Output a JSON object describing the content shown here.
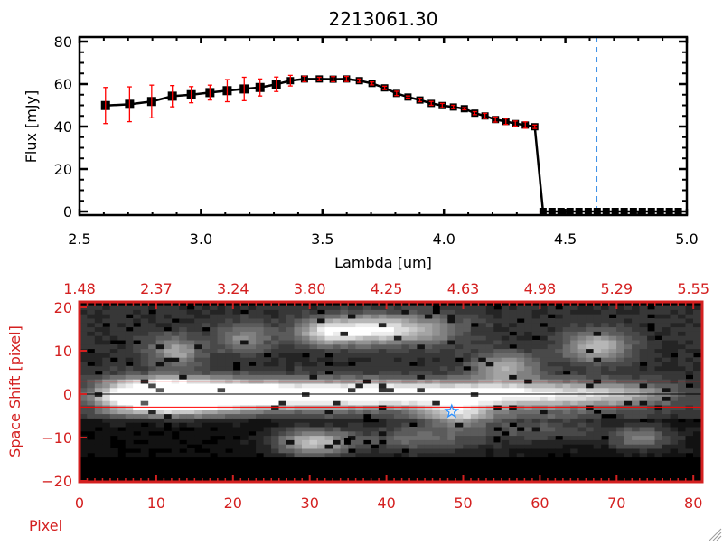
{
  "chart_data": [
    {
      "type": "line",
      "title": "2213061.30",
      "xlabel": "Lambda [um]",
      "ylabel": "Flux [mJy]",
      "xlim": [
        2.5,
        5.0
      ],
      "ylim": [
        0,
        80
      ],
      "xticks": [
        "2.5",
        "3.0",
        "3.5",
        "4.0",
        "4.5",
        "5.0"
      ],
      "yticks": [
        "0",
        "20",
        "40",
        "60",
        "80"
      ],
      "grid": false,
      "colors": {
        "line": "#000000",
        "errorbar": "#ff0000",
        "zero_line": "#ff0000",
        "marker_line": "#3a8ee6"
      },
      "marker_line_x": 4.63,
      "series": [
        {
          "x": [
            2.607,
            2.706,
            2.797,
            2.882,
            2.96,
            3.037,
            3.108,
            3.178,
            3.243,
            3.31,
            3.368,
            3.426,
            3.487,
            3.544,
            3.599,
            3.652,
            3.704,
            3.756,
            3.805,
            3.852,
            3.901,
            3.948,
            3.993,
            4.039,
            4.084,
            4.127,
            4.169,
            4.212,
            4.255,
            4.294,
            4.335,
            4.374,
            4.408,
            4.445,
            4.482,
            4.519,
            4.556,
            4.594,
            4.631,
            4.668,
            4.705,
            4.742,
            4.78,
            4.817,
            4.854,
            4.891,
            4.928,
            4.965
          ],
          "y": [
            49.9,
            50.5,
            51.8,
            54.3,
            55.0,
            56.0,
            56.9,
            57.7,
            58.4,
            59.9,
            61.6,
            62.4,
            62.4,
            62.3,
            62.4,
            61.6,
            60.3,
            58.2,
            55.6,
            53.9,
            52.5,
            50.9,
            49.9,
            49.2,
            48.4,
            46.3,
            45.0,
            43.3,
            42.4,
            41.4,
            40.7,
            39.9,
            0,
            0,
            0,
            0,
            0,
            0,
            0,
            0,
            0,
            0,
            0,
            0,
            0,
            0,
            0,
            0
          ],
          "err": [
            8.5,
            8.2,
            7.7,
            5.0,
            3.8,
            3.5,
            5.2,
            5.5,
            4.0,
            3.4,
            2.5,
            1.3,
            0.8,
            1.2,
            1.2,
            0.8,
            0.7,
            0.8,
            1.0,
            0.5,
            0.8,
            0.9,
            1.0,
            0.8,
            0.5,
            0.7,
            1.2,
            1.2,
            1.4,
            1.2,
            1.5,
            0.8,
            0,
            0,
            0,
            0,
            0,
            0,
            0,
            0,
            0,
            0,
            0,
            0,
            0,
            0,
            0,
            0
          ]
        }
      ]
    },
    {
      "type": "heatmap",
      "xlabel": "Pixel",
      "ylabel": "Space Shift [pixel]",
      "xlim": [
        0,
        80
      ],
      "ylim": [
        -20,
        20
      ],
      "xticks": [
        "0",
        "10",
        "20",
        "30",
        "40",
        "50",
        "60",
        "70",
        "80"
      ],
      "yticks": [
        "-20",
        "-10",
        "0",
        "10",
        "20"
      ],
      "top_xticks": [
        "1.48",
        "2.37",
        "3.24",
        "3.80",
        "4.25",
        "4.63",
        "4.98",
        "5.29",
        "5.55"
      ],
      "colormap": "grayscale",
      "colors": {
        "axes": "#d42020",
        "aperture_lines": "#ff0000",
        "center_line": "#000000",
        "star": "#2a8fff"
      },
      "aperture": [
        -3,
        3
      ],
      "center": 0,
      "star": {
        "x": 48.5,
        "y": -4
      }
    }
  ]
}
